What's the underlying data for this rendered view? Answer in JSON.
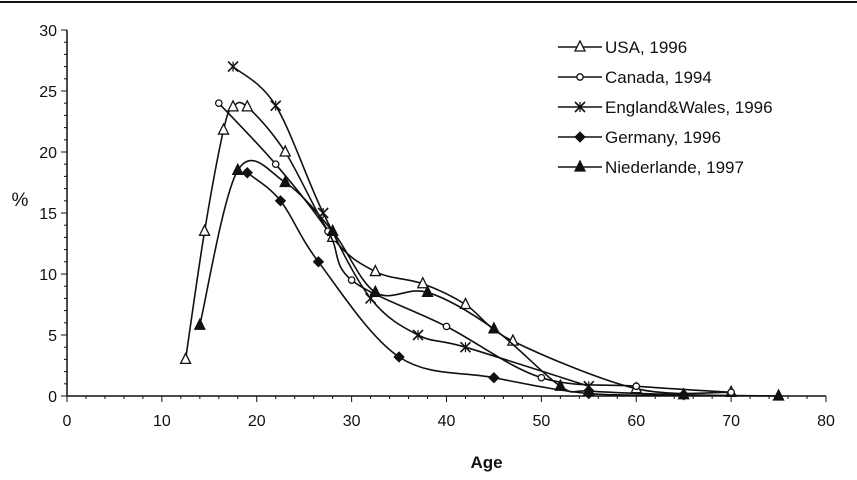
{
  "chart_data": {
    "type": "line",
    "xlabel": "Age",
    "ylabel": "%",
    "xlim": [
      0,
      80
    ],
    "ylim": [
      0,
      30
    ],
    "xticks": [
      0,
      10,
      20,
      30,
      40,
      50,
      60,
      70,
      80
    ],
    "yticks": [
      0,
      5,
      10,
      15,
      20,
      25,
      30
    ],
    "grid": false,
    "legend_position": "top-right",
    "series": [
      {
        "name": "USA, 1996",
        "marker": "triangle-open",
        "x": [
          12.5,
          14.5,
          16.5,
          17.5,
          19,
          23,
          28,
          32.5,
          37.5,
          42,
          47,
          60,
          70
        ],
        "y": [
          3,
          13.5,
          21.8,
          23.7,
          23.7,
          20,
          13,
          10.2,
          9.2,
          7.5,
          4.5,
          0.6,
          0.3
        ]
      },
      {
        "name": "Canada, 1994",
        "marker": "circle-open",
        "x": [
          16,
          22,
          27.5,
          30,
          40,
          50,
          60,
          70
        ],
        "y": [
          24,
          19,
          13.5,
          9.5,
          5.7,
          1.5,
          0.8,
          0.3
        ]
      },
      {
        "name": "England&Wales, 1996",
        "marker": "x",
        "x": [
          17.5,
          22,
          27,
          32,
          37,
          42,
          55
        ],
        "y": [
          27,
          23.8,
          15,
          8,
          5,
          4,
          0.8
        ]
      },
      {
        "name": "Germany, 1996",
        "marker": "diamond-filled",
        "x": [
          19,
          22.5,
          26.5,
          35,
          45,
          55,
          65
        ],
        "y": [
          18.3,
          16,
          11,
          3.2,
          1.5,
          0.2,
          0.1
        ]
      },
      {
        "name": "Niederlande, 1997",
        "marker": "triangle-filled",
        "x": [
          14,
          18,
          23,
          28,
          32.5,
          38,
          45,
          52,
          55,
          65,
          75
        ],
        "y": [
          5.8,
          18.5,
          17.5,
          13.5,
          8.5,
          8.5,
          5.5,
          0.8,
          0.4,
          0.1,
          0
        ]
      }
    ]
  },
  "colors": {
    "line": "#111111",
    "background": "#ffffff"
  }
}
